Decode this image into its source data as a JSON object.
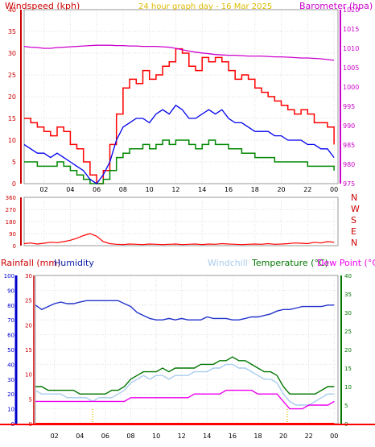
{
  "page_title": "24 hour graph day - 16 Mar 2025",
  "labels": {
    "windspeed": "Windspeed (kph)",
    "barometer": "Barometer (hpa)",
    "rainfall": "Rainfall (mm)",
    "humidity": "Humidity",
    "windchill": "Windchill",
    "temperature": "Temperature (°C)",
    "dewpoint": "Dew Point (°C)",
    "compass": [
      "N",
      "W",
      "S",
      "E",
      "N"
    ]
  },
  "colors": {
    "gust": "#ff0000",
    "average": "#0000ee",
    "low": "#008800",
    "barometer": "#cc00cc",
    "direction": "#ff0000",
    "humidity": "#2233cc",
    "windchill": "#aaccee",
    "temperature": "#007700",
    "dewpoint": "#ee00ee",
    "rainfall": "#ff0000",
    "axis_red": "#cc0000",
    "axis_magenta": "#cc00cc",
    "axis_blue": "#0000cc",
    "axis_green": "#007700",
    "title": "#ddbb00"
  },
  "chart_data": [
    {
      "type": "line",
      "name": "wind-and-pressure",
      "title": "24 hour graph day - 16 Mar 2025",
      "x_ticks": [
        "02",
        "04",
        "06",
        "08",
        "10",
        "12",
        "14",
        "16",
        "18",
        "20",
        "22",
        "00"
      ],
      "x_tick_hours": [
        2,
        4,
        6,
        8,
        10,
        12,
        14,
        16,
        18,
        20,
        22,
        24
      ],
      "x_range_hours": [
        0.5,
        24.3
      ],
      "y_left": {
        "label": "Windspeed (kph)",
        "range": [
          0,
          40
        ],
        "ticks": [
          0,
          5,
          10,
          15,
          20,
          25,
          30,
          35,
          40
        ]
      },
      "y_right": {
        "label": "Barometer (hpa)",
        "range": [
          975,
          1020
        ],
        "ticks": [
          975,
          980,
          985,
          990,
          995,
          1000,
          1005,
          1010,
          1015,
          1020
        ]
      },
      "hours": [
        0.5,
        1,
        1.5,
        2,
        2.5,
        3,
        3.5,
        4,
        4.5,
        5,
        5.5,
        6,
        6.5,
        7,
        7.5,
        8,
        8.5,
        9,
        9.5,
        10,
        10.5,
        11,
        11.5,
        12,
        12.5,
        13,
        13.5,
        14,
        14.5,
        15,
        15.5,
        16,
        16.5,
        17,
        17.5,
        18,
        18.5,
        19,
        19.5,
        20,
        20.5,
        21,
        21.5,
        22,
        22.5,
        23,
        23.5,
        24
      ],
      "series": [
        {
          "name": "Wind Gust",
          "axis": "left",
          "values": [
            15,
            14,
            13,
            12,
            11,
            13,
            12,
            9,
            8,
            5,
            2,
            0,
            3,
            9,
            16,
            22,
            24,
            23,
            26,
            24,
            25,
            27,
            28,
            31,
            30,
            27,
            26,
            29,
            28,
            29,
            28,
            26,
            24,
            25,
            24,
            22,
            21,
            20,
            19,
            18,
            17,
            16,
            17,
            16,
            14,
            14,
            13,
            9
          ]
        },
        {
          "name": "Wind Average",
          "axis": "left",
          "values": [
            9,
            8,
            7,
            7,
            6,
            7,
            6,
            5,
            4,
            3,
            1,
            0,
            2,
            5,
            10,
            13,
            14,
            15,
            15,
            14,
            16,
            17,
            16,
            18,
            17,
            15,
            15,
            16,
            17,
            16,
            17,
            15,
            14,
            14,
            13,
            12,
            12,
            12,
            11,
            11,
            10,
            10,
            10,
            9,
            9,
            8,
            8,
            6
          ]
        },
        {
          "name": "Wind Low",
          "axis": "left",
          "values": [
            5,
            5,
            4,
            4,
            4,
            5,
            4,
            3,
            2,
            1,
            0,
            0,
            1,
            3,
            6,
            7,
            8,
            8,
            9,
            8,
            9,
            10,
            9,
            10,
            10,
            9,
            8,
            9,
            10,
            9,
            9,
            8,
            8,
            7,
            7,
            6,
            6,
            6,
            5,
            5,
            5,
            5,
            5,
            4,
            4,
            4,
            4,
            3
          ]
        },
        {
          "name": "Barometer",
          "axis": "right",
          "values": [
            1010.5,
            1010.3,
            1010.2,
            1010.0,
            1010.0,
            1010.2,
            1010.3,
            1010.4,
            1010.5,
            1010.6,
            1010.7,
            1010.8,
            1010.8,
            1010.8,
            1010.7,
            1010.7,
            1010.6,
            1010.6,
            1010.5,
            1010.5,
            1010.5,
            1010.4,
            1010.3,
            1010.0,
            1009.6,
            1009.3,
            1009.0,
            1008.8,
            1008.6,
            1008.4,
            1008.3,
            1008.2,
            1008.2,
            1008.1,
            1008.0,
            1008.0,
            1008.0,
            1007.9,
            1007.8,
            1007.8,
            1007.7,
            1007.6,
            1007.5,
            1007.5,
            1007.4,
            1007.3,
            1007.1,
            1006.9
          ]
        }
      ]
    },
    {
      "type": "line",
      "name": "wind-direction",
      "y_ticks": [
        0,
        90,
        180,
        270,
        360
      ],
      "y_range": [
        0,
        360
      ],
      "compass_labels": [
        "N",
        "W",
        "S",
        "E",
        "N"
      ],
      "hours": [
        0.5,
        1,
        1.5,
        2,
        2.5,
        3,
        3.5,
        4,
        4.5,
        5,
        5.5,
        6,
        6.5,
        7,
        7.5,
        8,
        8.5,
        9,
        9.5,
        10,
        10.5,
        11,
        11.5,
        12,
        12.5,
        13,
        13.5,
        14,
        14.5,
        15,
        15.5,
        16,
        16.5,
        17,
        17.5,
        18,
        18.5,
        19,
        19.5,
        20,
        20.5,
        21,
        21.5,
        22,
        22.5,
        23,
        23.5,
        24
      ],
      "series": [
        {
          "name": "Wind Direction",
          "values": [
            15,
            20,
            12,
            18,
            25,
            22,
            30,
            40,
            55,
            75,
            90,
            70,
            30,
            15,
            10,
            8,
            12,
            10,
            8,
            12,
            10,
            8,
            10,
            12,
            8,
            10,
            12,
            8,
            12,
            10,
            15,
            12,
            10,
            8,
            10,
            12,
            10,
            15,
            10,
            12,
            15,
            20,
            18,
            15,
            25,
            20,
            30,
            25
          ]
        }
      ]
    },
    {
      "type": "line",
      "name": "temperature-humidity-rain",
      "x_ticks": [
        "02",
        "04",
        "06",
        "08",
        "10",
        "12",
        "14",
        "16",
        "18",
        "20",
        "22",
        "00"
      ],
      "x_tick_hours": [
        2,
        4,
        6,
        8,
        10,
        12,
        14,
        16,
        18,
        20,
        22,
        24
      ],
      "y_humidity": {
        "label": "Humidity",
        "range": [
          0,
          100
        ],
        "ticks": [
          0,
          10,
          20,
          30,
          40,
          50,
          60,
          70,
          80,
          90,
          100
        ]
      },
      "y_rain": {
        "label": "Rainfall (mm)",
        "range": [
          0,
          30
        ],
        "ticks": [
          0,
          5,
          10,
          15,
          20,
          25,
          30
        ]
      },
      "y_temp": {
        "label": "Temperature (°C)",
        "range": [
          0,
          40
        ],
        "ticks": [
          0,
          5,
          10,
          15,
          20,
          25,
          30,
          35,
          40
        ]
      },
      "hours": [
        0.5,
        1,
        1.5,
        2,
        2.5,
        3,
        3.5,
        4,
        4.5,
        5,
        5.5,
        6,
        6.5,
        7,
        7.5,
        8,
        8.5,
        9,
        9.5,
        10,
        10.5,
        11,
        11.5,
        12,
        12.5,
        13,
        13.5,
        14,
        14.5,
        15,
        15.5,
        16,
        16.5,
        17,
        17.5,
        18,
        18.5,
        19,
        19.5,
        20,
        20.5,
        21,
        21.5,
        22,
        22.5,
        23,
        23.5,
        24
      ],
      "series": [
        {
          "name": "Humidity",
          "axis": "humidity",
          "values": [
            80,
            77,
            79,
            81,
            82,
            81,
            81,
            82,
            83,
            83,
            83,
            83,
            83,
            83,
            81,
            79,
            75,
            73,
            71,
            70,
            70,
            71,
            70,
            71,
            70,
            70,
            70,
            72,
            71,
            71,
            71,
            70,
            70,
            71,
            72,
            72,
            73,
            74,
            76,
            77,
            77,
            78,
            79,
            79,
            79,
            79,
            80,
            80
          ]
        },
        {
          "name": "Windchill",
          "axis": "temp",
          "values": [
            9,
            8,
            8,
            8,
            8,
            7,
            7,
            7,
            7,
            6,
            7,
            7,
            7,
            8,
            9,
            11,
            12,
            13,
            12,
            13,
            13,
            12,
            13,
            13,
            13,
            14,
            14,
            14,
            15,
            15,
            16,
            16,
            15,
            15,
            14,
            13,
            12,
            12,
            11,
            8,
            6,
            5,
            5,
            5,
            6,
            7,
            8,
            8
          ]
        },
        {
          "name": "Temperature",
          "axis": "temp",
          "values": [
            10,
            10,
            9,
            9,
            9,
            9,
            9,
            8,
            8,
            8,
            8,
            8,
            9,
            9,
            10,
            12,
            13,
            14,
            14,
            14,
            15,
            14,
            15,
            15,
            15,
            15,
            16,
            16,
            16,
            17,
            17,
            18,
            17,
            17,
            16,
            15,
            14,
            14,
            13,
            10,
            8,
            8,
            8,
            8,
            8,
            9,
            10,
            10
          ]
        },
        {
          "name": "Dew Point",
          "axis": "temp",
          "values": [
            6,
            6,
            6,
            6,
            6,
            6,
            6,
            6,
            6,
            6,
            6,
            6,
            6,
            6,
            6,
            7,
            7,
            7,
            7,
            7,
            7,
            7,
            7,
            7,
            7,
            8,
            8,
            8,
            8,
            8,
            9,
            9,
            9,
            9,
            9,
            8,
            8,
            8,
            8,
            6,
            4,
            4,
            4,
            5,
            5,
            5,
            5,
            6
          ]
        },
        {
          "name": "Rainfall",
          "axis": "rain",
          "values": [
            0,
            0,
            0,
            0,
            0,
            0,
            0,
            0,
            0,
            0,
            0,
            0,
            0,
            0,
            0,
            0,
            0,
            0,
            0,
            0,
            0,
            0,
            0,
            0,
            0,
            0,
            0,
            0,
            0,
            0,
            0,
            0,
            0,
            0,
            0,
            0,
            0,
            0,
            0,
            0,
            0,
            0,
            0,
            0,
            0,
            0,
            0,
            0
          ]
        }
      ]
    }
  ]
}
